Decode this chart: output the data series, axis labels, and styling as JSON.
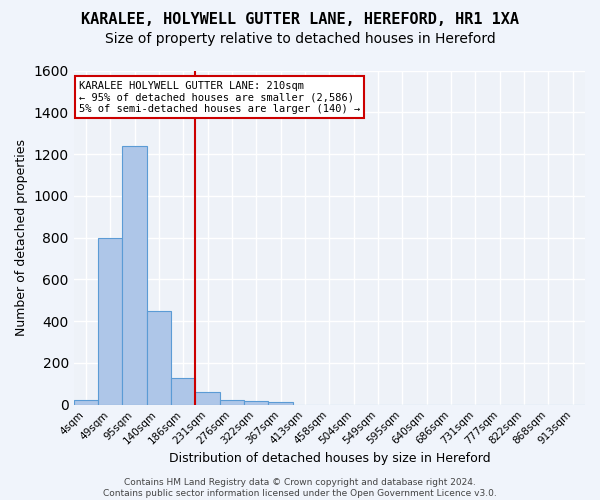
{
  "title": "KARALEE, HOLYWELL GUTTER LANE, HEREFORD, HR1 1XA",
  "subtitle": "Size of property relative to detached houses in Hereford",
  "xlabel": "Distribution of detached houses by size in Hereford",
  "ylabel": "Number of detached properties",
  "bin_labels": [
    "4sqm",
    "49sqm",
    "95sqm",
    "140sqm",
    "186sqm",
    "231sqm",
    "276sqm",
    "322sqm",
    "367sqm",
    "413sqm",
    "458sqm",
    "504sqm",
    "549sqm",
    "595sqm",
    "640sqm",
    "686sqm",
    "731sqm",
    "777sqm",
    "822sqm",
    "868sqm",
    "913sqm"
  ],
  "bin_values": [
    25,
    800,
    1240,
    450,
    130,
    60,
    25,
    18,
    15,
    0,
    0,
    0,
    0,
    0,
    0,
    0,
    0,
    0,
    0,
    0,
    0
  ],
  "bar_color": "#aec6e8",
  "bar_edge_color": "#5b9bd5",
  "vline_color": "#cc0000",
  "ylim": [
    0,
    1600
  ],
  "yticks": [
    0,
    200,
    400,
    600,
    800,
    1000,
    1200,
    1400,
    1600
  ],
  "annotation_text": "KARALEE HOLYWELL GUTTER LANE: 210sqm\n← 95% of detached houses are smaller (2,586)\n5% of semi-detached houses are larger (140) →",
  "annotation_box_color": "#ffffff",
  "annotation_box_edge": "#cc0000",
  "bg_color": "#eef2f8",
  "fig_bg_color": "#f0f4fb",
  "grid_color": "#ffffff",
  "footer": "Contains HM Land Registry data © Crown copyright and database right 2024.\nContains public sector information licensed under the Open Government Licence v3.0.",
  "title_fontsize": 11,
  "subtitle_fontsize": 10,
  "property_sqm": 210,
  "bin_starts": [
    4,
    49,
    95,
    140,
    186,
    231,
    276,
    322,
    367,
    413,
    458,
    504,
    549,
    595,
    640,
    686,
    731,
    777,
    822,
    868,
    913
  ]
}
